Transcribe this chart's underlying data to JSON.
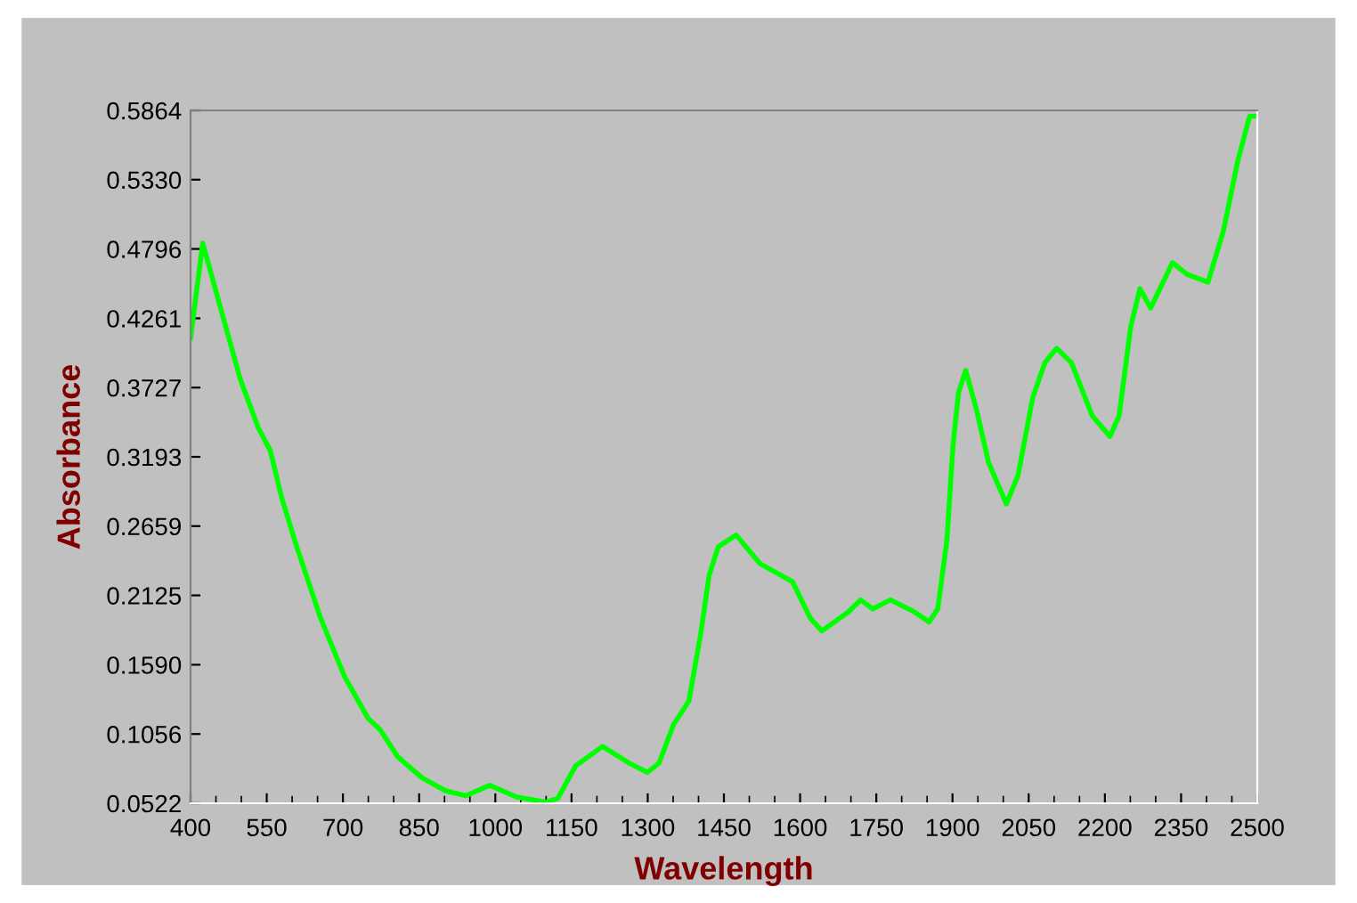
{
  "chart_data": {
    "type": "line",
    "xlabel": "Wavelength",
    "ylabel": "Absorbance",
    "x": [
      400,
      424,
      469,
      498,
      533,
      557,
      580,
      609,
      656,
      703,
      749,
      773,
      808,
      855,
      901,
      942,
      989,
      1042,
      1100,
      1123,
      1158,
      1211,
      1264,
      1299,
      1322,
      1351,
      1381,
      1404,
      1421,
      1439,
      1474,
      1521,
      1585,
      1620,
      1643,
      1696,
      1719,
      1743,
      1778,
      1824,
      1854,
      1871,
      1889,
      1901,
      1912,
      1926,
      1947,
      1971,
      2006,
      2029,
      2058,
      2082,
      2105,
      2134,
      2175,
      2210,
      2228,
      2251,
      2269,
      2290,
      2333,
      2362,
      2403,
      2433,
      2462,
      2485,
      2497
    ],
    "series": [
      {
        "color": "#00ff00",
        "values": [
          0.411,
          0.484,
          0.42,
          0.379,
          0.342,
          0.324,
          0.287,
          0.25,
          0.195,
          0.15,
          0.118,
          0.109,
          0.088,
          0.072,
          0.062,
          0.058,
          0.066,
          0.057,
          0.053,
          0.056,
          0.081,
          0.096,
          0.083,
          0.076,
          0.083,
          0.113,
          0.131,
          0.182,
          0.228,
          0.25,
          0.259,
          0.237,
          0.223,
          0.195,
          0.185,
          0.2,
          0.209,
          0.202,
          0.209,
          0.2,
          0.192,
          0.202,
          0.255,
          0.328,
          0.369,
          0.386,
          0.356,
          0.315,
          0.283,
          0.305,
          0.365,
          0.392,
          0.403,
          0.392,
          0.351,
          0.335,
          0.351,
          0.42,
          0.449,
          0.434,
          0.469,
          0.46,
          0.454,
          0.493,
          0.548,
          0.582,
          0.582
        ]
      }
    ],
    "xlim": [
      400,
      2500
    ],
    "xticks": [
      400,
      550,
      700,
      850,
      1000,
      1150,
      1300,
      1450,
      1600,
      1750,
      1900,
      2050,
      2200,
      2350,
      2500
    ],
    "ylim": [
      0.0522,
      0.5864
    ],
    "yticks": [
      {
        "value": 0.0522,
        "label": "0.0522"
      },
      {
        "value": 0.1056,
        "label": "0.1056"
      },
      {
        "value": 0.159,
        "label": "0.1590"
      },
      {
        "value": 0.2125,
        "label": "0.2125"
      },
      {
        "value": 0.2659,
        "label": "0.2659"
      },
      {
        "value": 0.3193,
        "label": "0.3193"
      },
      {
        "value": 0.3727,
        "label": "0.3727"
      },
      {
        "value": 0.4261,
        "label": "0.4261"
      },
      {
        "value": 0.4796,
        "label": "0.4796"
      },
      {
        "value": 0.533,
        "label": "0.5330"
      },
      {
        "value": 0.5864,
        "label": "0.5864"
      }
    ],
    "grid": false,
    "legend": false,
    "marker": "none",
    "line_style": "solid"
  }
}
